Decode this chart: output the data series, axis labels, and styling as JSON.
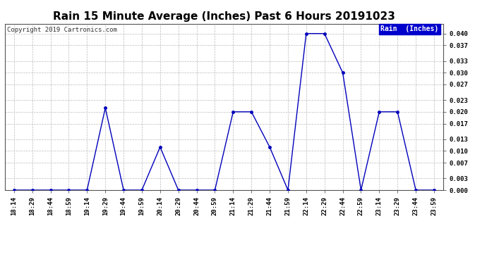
{
  "title": "Rain 15 Minute Average (Inches) Past 6 Hours 20191023",
  "copyright": "Copyright 2019 Cartronics.com",
  "legend_label": "Rain  (Inches)",
  "x_labels": [
    "18:14",
    "18:29",
    "18:44",
    "18:59",
    "19:14",
    "19:29",
    "19:44",
    "19:59",
    "20:14",
    "20:29",
    "20:44",
    "20:59",
    "21:14",
    "21:29",
    "21:44",
    "21:59",
    "22:14",
    "22:29",
    "22:44",
    "22:59",
    "23:14",
    "23:29",
    "23:44",
    "23:59"
  ],
  "y_values": [
    0.0,
    0.0,
    0.0,
    0.0,
    0.0,
    0.021,
    0.0,
    0.0,
    0.011,
    0.0,
    0.0,
    0.0,
    0.02,
    0.02,
    0.011,
    0.0,
    0.04,
    0.04,
    0.03,
    0.0,
    0.02,
    0.02,
    0.0,
    0.0
  ],
  "line_color": "#0000BB",
  "marker_color": "#0000BB",
  "background_color": "#ffffff",
  "grid_color": "#bbbbbb",
  "title_fontsize": 11,
  "tick_fontsize": 6.5,
  "copyright_fontsize": 6.5,
  "legend_fontsize": 7,
  "legend_bg_color": "#0000cc",
  "legend_text_color": "#ffffff",
  "ylim": [
    0.0,
    0.0425
  ],
  "yticks": [
    0.0,
    0.003,
    0.007,
    0.01,
    0.013,
    0.017,
    0.02,
    0.023,
    0.027,
    0.03,
    0.033,
    0.037,
    0.04
  ]
}
